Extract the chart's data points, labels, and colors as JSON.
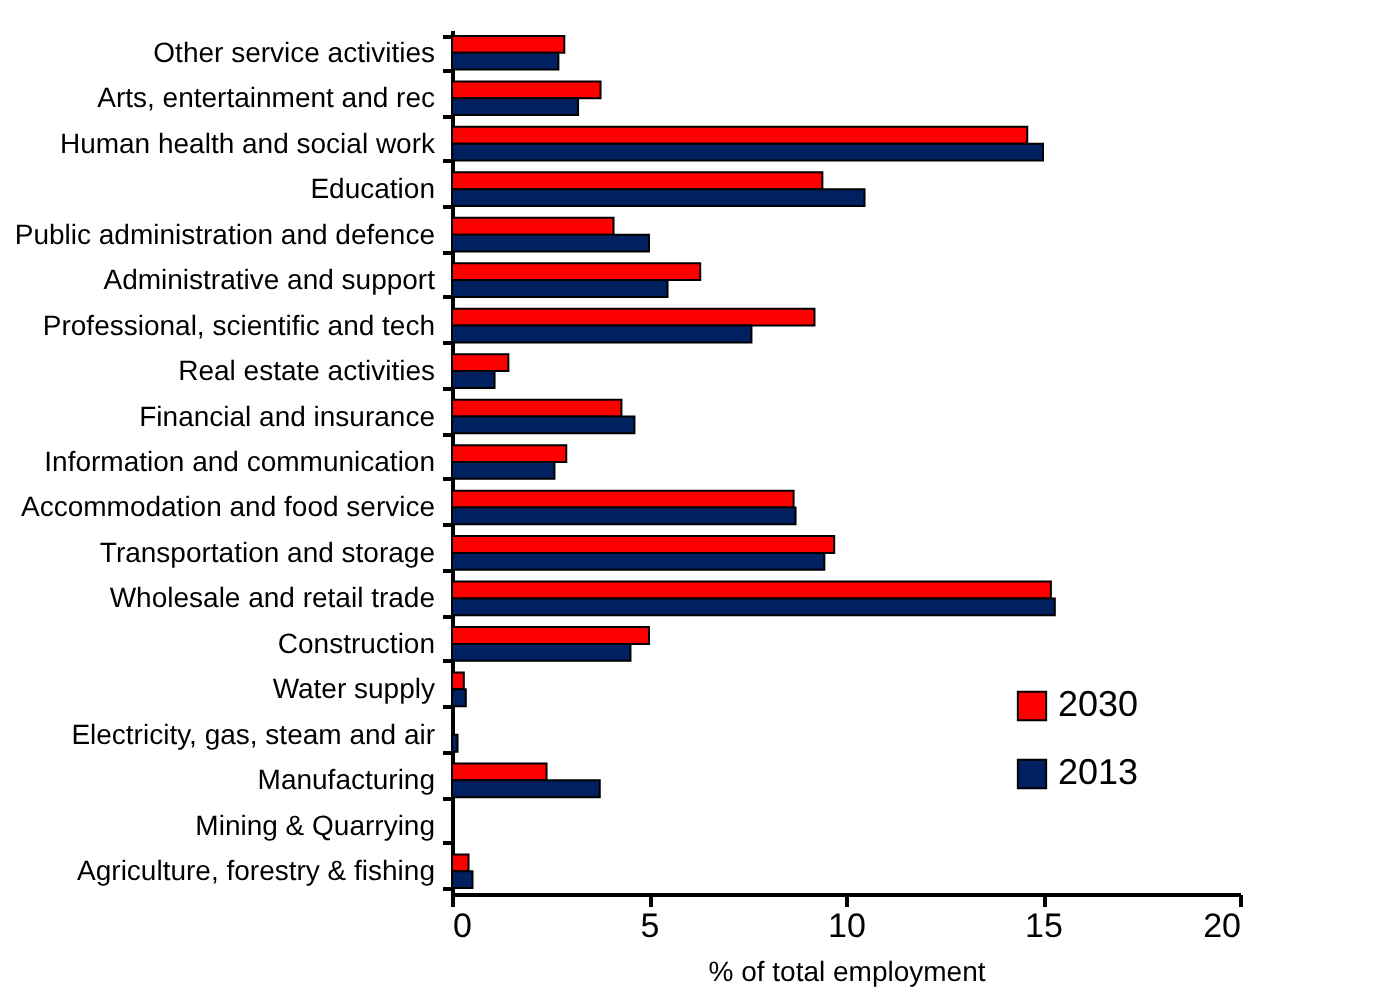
{
  "chart_data": {
    "type": "bar",
    "orientation": "horizontal",
    "xlabel": "% of total employment",
    "categories": [
      "Other service activities",
      "Arts, entertainment and rec",
      "Human health and social work",
      "Education",
      "Public administration and defence",
      "Administrative and support",
      "Professional, scientific and tech",
      "Real estate activities",
      "Financial and insurance",
      "Information and communication",
      "Accommodation and food service",
      "Transportation and storage",
      "Wholesale and retail trade",
      "Construction",
      "Water supply",
      "Electricity, gas, steam and air",
      "Manufacturing",
      "Mining & Quarrying",
      "Agriculture, forestry & fishing"
    ],
    "series": [
      {
        "name": "2030",
        "color": "#ff0000",
        "values": [
          2.85,
          3.77,
          14.6,
          9.4,
          4.1,
          6.3,
          9.2,
          1.43,
          4.3,
          2.9,
          8.67,
          9.7,
          15.2,
          5.0,
          0.3,
          0,
          2.4,
          0,
          0.42
        ]
      },
      {
        "name": "2013",
        "color": "#002060",
        "values": [
          2.7,
          3.2,
          15.0,
          10.47,
          5.0,
          5.47,
          7.6,
          1.08,
          4.63,
          2.6,
          8.72,
          9.45,
          15.3,
          4.53,
          0.35,
          0.14,
          3.75,
          0,
          0.52
        ]
      }
    ],
    "xlim": [
      0,
      20
    ],
    "xticks": [
      0,
      5,
      10,
      15,
      20
    ],
    "grid": false,
    "legend": "bottom right"
  }
}
